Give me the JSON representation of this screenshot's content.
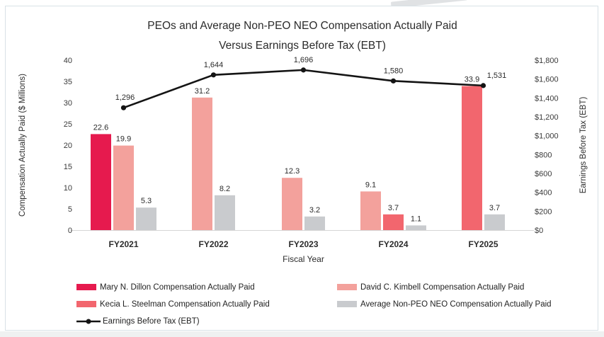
{
  "chart_data": {
    "type": "bar+line combo",
    "title_line1": "PEOs and Average Non-PEO NEO Compensation Actually Paid",
    "title_line2": "Versus Earnings Before Tax (EBT)",
    "xlabel": "Fiscal Year",
    "categories": [
      "FY2021",
      "FY2022",
      "FY2023",
      "FY2024",
      "FY2025"
    ],
    "grid": "off",
    "legend_position": "bottom-left two columns",
    "left_axis": {
      "label": "Compensation Actually Paid ($ Millions)",
      "min": 0,
      "max": 40,
      "step": 5,
      "tick_labels": [
        "0",
        "5",
        "10",
        "15",
        "20",
        "25",
        "30",
        "35",
        "40"
      ]
    },
    "right_axis": {
      "label": "Earnings Before Tax (EBT)",
      "min": 0,
      "max": 1800,
      "step": 200,
      "tick_labels": [
        "$0",
        "$200",
        "$400",
        "$600",
        "$800",
        "$1,000",
        "$1,200",
        "$1,400",
        "$1,600",
        "$1,800"
      ]
    },
    "bar_series": [
      {
        "name": "Mary N. Dillon Compensation Actually Paid",
        "color": "#e61a4e",
        "values": [
          22.6,
          null,
          null,
          null,
          null
        ],
        "labels": [
          "22.6",
          "",
          "",
          "",
          ""
        ]
      },
      {
        "name": "David C. Kimbell Compensation Actually Paid",
        "color": "#f3a19c",
        "values": [
          19.9,
          31.2,
          12.3,
          9.1,
          null
        ],
        "labels": [
          "19.9",
          "31.2",
          "12.3",
          "9.1",
          ""
        ]
      },
      {
        "name": "Kecia L. Steelman Compensation Actually Paid",
        "color": "#f2666e",
        "values": [
          null,
          null,
          null,
          3.7,
          33.9
        ],
        "labels": [
          "",
          "",
          "",
          "3.7",
          "33.9"
        ]
      },
      {
        "name": "Average Non-PEO NEO Compensation Actually Paid",
        "color": "#c9cbce",
        "values": [
          5.3,
          8.2,
          3.2,
          1.1,
          3.7
        ],
        "labels": [
          "5.3",
          "8.2",
          "3.2",
          "1.1",
          "3.7"
        ]
      }
    ],
    "line_series": {
      "name": "Earnings Before Tax (EBT)",
      "color": "#141414",
      "values": [
        1296,
        1644,
        1696,
        1580,
        1531
      ],
      "labels": [
        "1,296",
        "1,644",
        "1,696",
        "1,580",
        "1,531"
      ],
      "label_dx": [
        2,
        0,
        0,
        0,
        19
      ]
    }
  }
}
